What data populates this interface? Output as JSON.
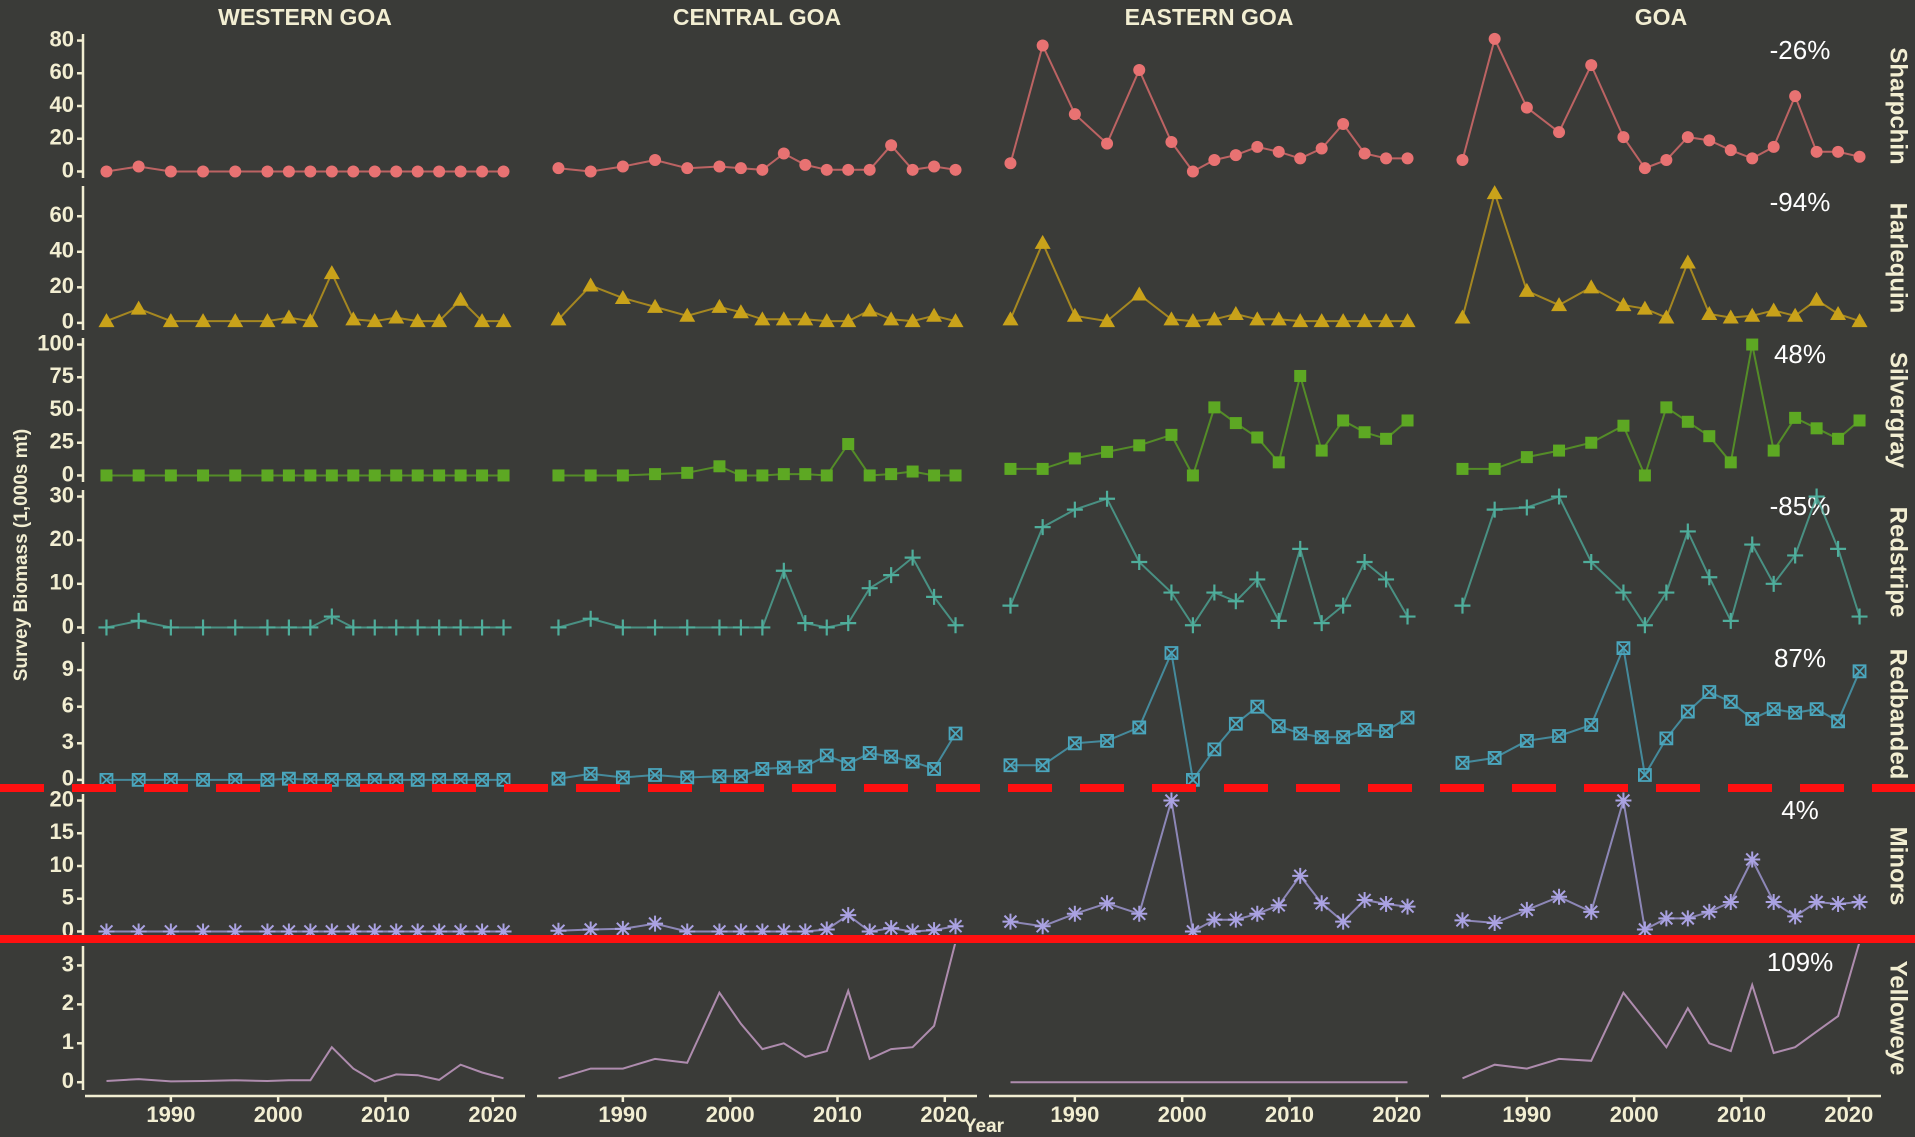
{
  "chart_data": {
    "type": "line",
    "y_label": "Survey Biomass (1,000s mt)",
    "x_label": "Year",
    "x": [
      1984,
      1987,
      1990,
      1993,
      1996,
      1999,
      2001,
      2003,
      2005,
      2007,
      2009,
      2011,
      2013,
      2015,
      2017,
      2019,
      2021
    ],
    "xlim": [
      1982,
      2023
    ],
    "xticks": [
      1990,
      2000,
      2010,
      2020
    ],
    "columns": [
      "WESTERN GOA",
      "CENTRAL GOA",
      "EASTERN GOA",
      "GOA"
    ],
    "rows": [
      {
        "name": "Sharpchin",
        "change": "-26%",
        "color": "#e87272",
        "marker": "circle",
        "ylim": [
          -4,
          84
        ],
        "yticks": [
          0,
          20,
          40,
          60,
          80
        ],
        "values": [
          [
            0,
            3,
            0,
            0,
            0,
            0,
            0,
            0,
            0,
            0,
            0,
            0,
            0,
            0,
            0,
            0,
            0
          ],
          [
            2,
            0,
            3,
            7,
            2,
            3,
            2,
            1,
            11,
            4,
            1,
            1,
            1,
            16,
            1,
            3,
            1
          ],
          [
            5,
            77,
            35,
            17,
            62,
            18,
            0,
            7,
            10,
            15,
            12,
            8,
            14,
            29,
            11,
            8,
            8
          ],
          [
            7,
            81,
            39,
            24,
            65,
            21,
            2,
            7,
            21,
            19,
            13,
            8,
            15,
            46,
            12,
            12,
            9
          ]
        ]
      },
      {
        "name": "Harlequin",
        "change": "-94%",
        "color": "#c9a21a",
        "marker": "triangle",
        "ylim": [
          -4,
          77
        ],
        "yticks": [
          0,
          20,
          40,
          60
        ],
        "values": [
          [
            1,
            8,
            1,
            1,
            1,
            1,
            3,
            1,
            28,
            2,
            1,
            3,
            1,
            1,
            13,
            1,
            1
          ],
          [
            2,
            21,
            14,
            9,
            4,
            9,
            6,
            2,
            2,
            2,
            1,
            1,
            7,
            2,
            1,
            4,
            1
          ],
          [
            2,
            45,
            4,
            1,
            16,
            2,
            1,
            2,
            5,
            2,
            2,
            1,
            1,
            1,
            1,
            1,
            1
          ],
          [
            3,
            73,
            18,
            10,
            20,
            10,
            8,
            3,
            34,
            5,
            3,
            4,
            7,
            4,
            13,
            5,
            1
          ]
        ]
      },
      {
        "name": "Silvergray",
        "change": "48%",
        "color": "#5da823",
        "marker": "square",
        "ylim": [
          -5,
          105
        ],
        "yticks": [
          0,
          25,
          50,
          75,
          100
        ],
        "values": [
          [
            0,
            0,
            0,
            0,
            0,
            0,
            0,
            0,
            0,
            0,
            0,
            0,
            0,
            0,
            0,
            0,
            0
          ],
          [
            0,
            0,
            0,
            1,
            2,
            7,
            0,
            0,
            1,
            1,
            0,
            24,
            0,
            1,
            3,
            0,
            0
          ],
          [
            5,
            5,
            13,
            18,
            23,
            31,
            0,
            52,
            40,
            29,
            10,
            76,
            19,
            42,
            33,
            28,
            42
          ],
          [
            5,
            5,
            14,
            19,
            25,
            38,
            0,
            52,
            41,
            30,
            10,
            100,
            19,
            44,
            36,
            28,
            42
          ]
        ]
      },
      {
        "name": "Redstripe",
        "change": "-85%",
        "color": "#4fae9c",
        "marker": "plus",
        "ylim": [
          -1.5,
          31.5
        ],
        "yticks": [
          0,
          10,
          20,
          30
        ],
        "values": [
          [
            0,
            1.5,
            0,
            0,
            0,
            0,
            0,
            0,
            2.5,
            0,
            0,
            0,
            0,
            0,
            0,
            0,
            0
          ],
          [
            0,
            2,
            0,
            0,
            0,
            0,
            0,
            0,
            13,
            1,
            0,
            1,
            9,
            12,
            16,
            7,
            0.5
          ],
          [
            5,
            23,
            27,
            29.5,
            15,
            8,
            0.5,
            8,
            6,
            11,
            1.5,
            18,
            1,
            5,
            15,
            11,
            2.5
          ],
          [
            5,
            27,
            27.5,
            30,
            15,
            8,
            0.5,
            8,
            22,
            11.5,
            1.5,
            19,
            10,
            16.5,
            30,
            18,
            2.5
          ]
        ]
      },
      {
        "name": "Redbanded",
        "change": "87%",
        "color": "#4aa6bd",
        "marker": "boxx",
        "ylim": [
          -0.5,
          11.3
        ],
        "yticks": [
          0,
          3,
          6,
          9
        ],
        "values": [
          [
            0,
            0,
            0,
            0,
            0,
            0,
            0.1,
            0,
            0,
            0,
            0,
            0,
            0,
            0,
            0,
            0,
            0
          ],
          [
            0.1,
            0.5,
            0.2,
            0.4,
            0.2,
            0.3,
            0.3,
            0.9,
            1,
            1.1,
            2,
            1.3,
            2.2,
            1.9,
            1.5,
            0.9,
            3.8
          ],
          [
            1.2,
            1.2,
            3,
            3.2,
            4.3,
            10.4,
            0,
            2.5,
            4.6,
            6,
            4.4,
            3.8,
            3.5,
            3.5,
            4.1,
            4,
            5.1
          ],
          [
            1.4,
            1.8,
            3.2,
            3.6,
            4.5,
            10.8,
            0.4,
            3.4,
            5.6,
            7.2,
            6.4,
            5,
            5.8,
            5.5,
            5.8,
            4.8,
            8.9
          ]
        ]
      },
      {
        "name": "Minors",
        "change": "4%",
        "color": "#aaa2e2",
        "marker": "asterisk",
        "ylim": [
          -1,
          21
        ],
        "yticks": [
          0,
          5,
          10,
          15,
          20
        ],
        "values": [
          [
            0,
            0,
            0,
            0,
            0,
            0,
            0,
            0,
            0,
            0,
            0,
            0,
            0,
            0,
            0,
            0,
            0
          ],
          [
            0.1,
            0.3,
            0.4,
            1.2,
            0,
            0,
            0,
            0,
            0,
            0,
            0.3,
            2.5,
            0,
            0.5,
            0,
            0.2,
            0.8
          ],
          [
            1.5,
            0.8,
            2.7,
            4.3,
            2.7,
            20,
            0,
            1.8,
            1.8,
            2.7,
            4,
            8.5,
            4.3,
            1.5,
            4.8,
            4.2,
            3.8
          ],
          [
            1.7,
            1.3,
            3.3,
            5.3,
            3,
            20,
            0.3,
            2,
            2,
            3,
            4.5,
            11,
            4.5,
            2.3,
            4.5,
            4.2,
            4.5
          ]
        ]
      },
      {
        "name": "Yelloweye",
        "change": "109%",
        "color": "#d6a8d6",
        "marker": "none",
        "ylim": [
          -0.2,
          3.5
        ],
        "yticks": [
          0,
          1,
          2,
          3
        ],
        "values": [
          [
            0.03,
            0.08,
            0.02,
            0.03,
            0.05,
            0.03,
            0.05,
            0.05,
            0.9,
            0.35,
            0.02,
            0.2,
            0.18,
            0.06,
            0.45,
            0.25,
            0.1
          ],
          [
            0.1,
            0.35,
            0.35,
            0.6,
            0.5,
            2.3,
            1.5,
            0.85,
            1,
            0.65,
            0.8,
            2.35,
            0.6,
            0.85,
            0.9,
            1.45,
            3.6
          ],
          [
            0,
            0,
            0,
            0,
            0,
            0,
            0,
            0,
            0,
            0,
            0,
            0,
            0,
            0,
            0,
            0,
            0
          ],
          [
            0.1,
            0.45,
            0.35,
            0.6,
            0.55,
            2.3,
            1.6,
            0.9,
            1.9,
            1,
            0.8,
            2.5,
            0.75,
            0.9,
            1.3,
            1.7,
            3.6
          ]
        ]
      }
    ]
  }
}
